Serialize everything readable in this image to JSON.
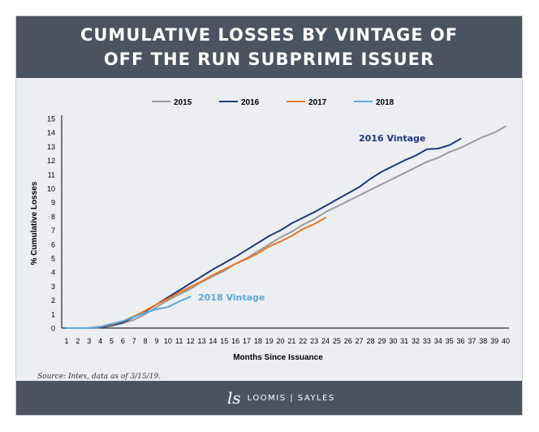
{
  "title_line1": "CUMULATIVE LOSSES BY VINTAGE OF",
  "title_line2": "OFF THE RUN SUBPRIME ISSUER",
  "source": "Source: Intex, data as of 3/15/19.",
  "logo_mark": "ls",
  "logo_text": "LOOMIS | SAYLES",
  "annotations": {
    "vintage_2016": "2016 Vintage",
    "vintage_2018": "2018 Vintage"
  },
  "colors": {
    "2015": "#9b9b9b",
    "2016": "#1f3a7a",
    "2017": "#e87722",
    "2018": "#5aa9dc",
    "header": "#4b5361"
  },
  "chart_data": {
    "type": "line",
    "xlabel": "Months Since Issuance",
    "ylabel": "% Cumulative Losses",
    "xlim": [
      1,
      40
    ],
    "ylim": [
      0,
      15
    ],
    "yticks": [
      0,
      1,
      2,
      3,
      4,
      5,
      6,
      7,
      8,
      9,
      10,
      11,
      12,
      13,
      14,
      15
    ],
    "xticks": [
      1,
      2,
      3,
      4,
      5,
      6,
      7,
      8,
      9,
      10,
      11,
      12,
      13,
      14,
      15,
      16,
      17,
      18,
      19,
      20,
      21,
      22,
      23,
      24,
      25,
      26,
      27,
      28,
      29,
      30,
      31,
      32,
      33,
      34,
      35,
      36,
      37,
      38,
      39,
      40
    ],
    "legend_position": "top-center",
    "grid": false,
    "series": [
      {
        "name": "2015",
        "x": [
          1,
          2,
          3,
          4,
          5,
          6,
          7,
          8,
          9,
          10,
          11,
          12,
          13,
          14,
          15,
          16,
          17,
          18,
          19,
          20,
          21,
          22,
          23,
          24,
          25,
          26,
          27,
          28,
          29,
          30,
          31,
          32,
          33,
          34,
          35,
          36,
          37,
          38,
          39,
          40
        ],
        "values": [
          0,
          0,
          0,
          0.05,
          0.15,
          0.35,
          0.6,
          1.0,
          1.5,
          2.0,
          2.4,
          2.8,
          3.3,
          3.7,
          4.1,
          4.6,
          5.0,
          5.5,
          6.0,
          6.5,
          6.9,
          7.4,
          7.8,
          8.3,
          8.7,
          9.1,
          9.5,
          9.9,
          10.3,
          10.7,
          11.1,
          11.5,
          11.9,
          12.2,
          12.6,
          12.9,
          13.3,
          13.7,
          14.0,
          14.45
        ]
      },
      {
        "name": "2016",
        "x": [
          1,
          2,
          3,
          4,
          5,
          6,
          7,
          8,
          9,
          10,
          11,
          12,
          13,
          14,
          15,
          16,
          17,
          18,
          19,
          20,
          21,
          22,
          23,
          24,
          25,
          26,
          27,
          28,
          29,
          30,
          31,
          32,
          33,
          34,
          35,
          36
        ],
        "values": [
          0,
          0,
          0,
          0.05,
          0.2,
          0.4,
          0.8,
          1.2,
          1.7,
          2.2,
          2.7,
          3.2,
          3.7,
          4.2,
          4.65,
          5.1,
          5.6,
          6.1,
          6.6,
          7.0,
          7.5,
          7.9,
          8.3,
          8.75,
          9.2,
          9.65,
          10.1,
          10.7,
          11.2,
          11.6,
          12.0,
          12.35,
          12.8,
          12.85,
          13.1,
          13.55
        ]
      },
      {
        "name": "2017",
        "x": [
          1,
          2,
          3,
          4,
          5,
          6,
          7,
          8,
          9,
          10,
          11,
          12,
          13,
          14,
          15,
          16,
          17,
          18,
          19,
          20,
          21,
          22,
          23,
          24
        ],
        "values": [
          0,
          0,
          0,
          0.1,
          0.25,
          0.5,
          0.85,
          1.25,
          1.7,
          2.1,
          2.55,
          2.95,
          3.35,
          3.8,
          4.2,
          4.6,
          4.95,
          5.35,
          5.85,
          6.2,
          6.6,
          7.1,
          7.45,
          7.9
        ]
      },
      {
        "name": "2018",
        "x": [
          1,
          2,
          3,
          4,
          5,
          6,
          7,
          8,
          9,
          10,
          11,
          12
        ],
        "values": [
          0,
          0,
          0,
          0.1,
          0.3,
          0.5,
          0.8,
          1.1,
          1.35,
          1.5,
          1.9,
          2.25
        ]
      }
    ]
  }
}
